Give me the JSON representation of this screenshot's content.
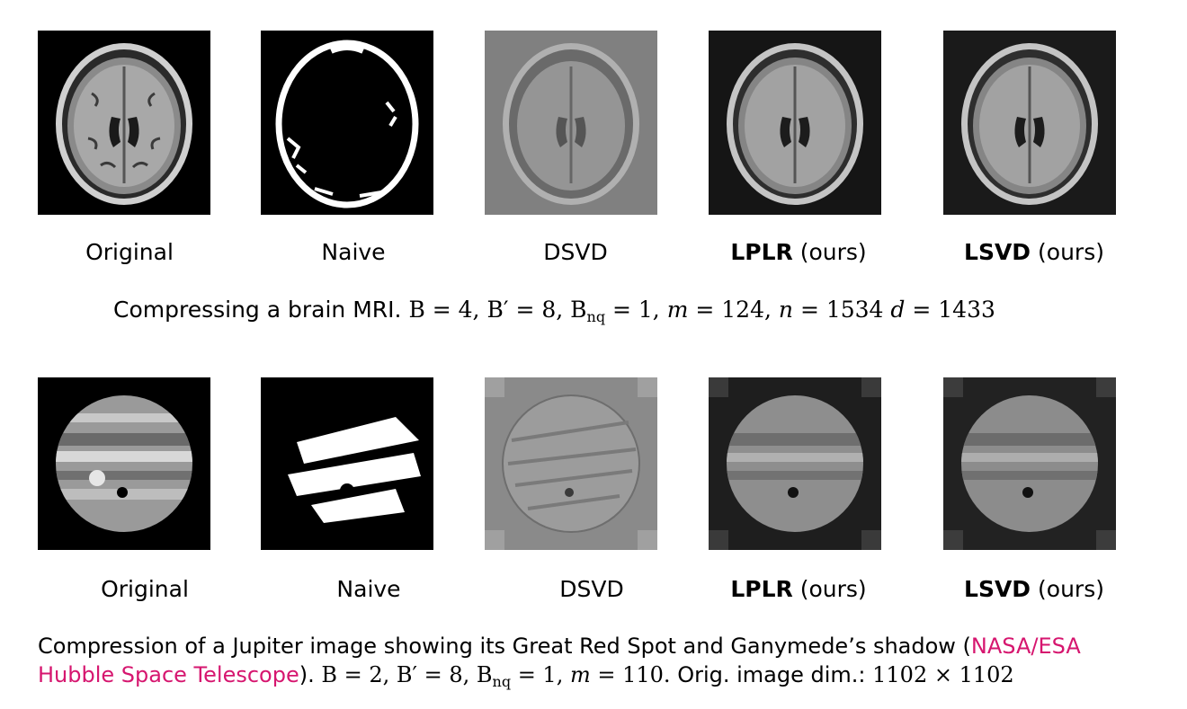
{
  "row1": {
    "labels": [
      {
        "bold": "",
        "text": "Original"
      },
      {
        "bold": "",
        "text": "Naive"
      },
      {
        "bold": "",
        "text": "DSVD"
      },
      {
        "bold": "LPLR",
        "text": " (ours)"
      },
      {
        "bold": "LSVD",
        "text": " (ours)"
      }
    ],
    "caption": {
      "text": "Compressing a brain MRI.",
      "m": "124",
      "n": "1534",
      "d": "1433"
    }
  },
  "row2": {
    "labels": [
      {
        "bold": "",
        "text": "Original"
      },
      {
        "bold": "",
        "text": "Naive"
      },
      {
        "bold": "",
        "text": "DSVD"
      },
      {
        "bold": "LPLR",
        "text": " (ours)"
      },
      {
        "bold": "LSVD",
        "text": " (ours)"
      }
    ],
    "caption": {
      "line1": "Compression of a Jupiter image showing its Great Red Spot and Ganymede’s shadow (",
      "link_a": "NASA/ESA",
      "link_b": "Hubble Space Telescope",
      "after_link": ").",
      "m": "110",
      "dim_text": "Orig. image dim.:",
      "dim": "1102 × 1102"
    }
  },
  "colors": {
    "link": "#d6166f"
  }
}
